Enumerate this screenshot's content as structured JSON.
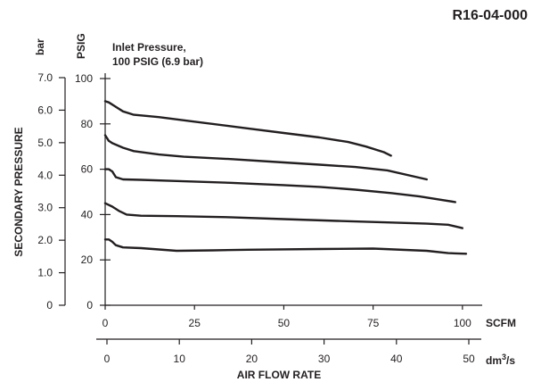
{
  "chart_data": {
    "type": "line",
    "code": "R16-04-000",
    "annotation_line1": "Inlet Pressure,",
    "annotation_line2": "100 PSIG (6.9 bar)",
    "ylabel": "SECONDARY PRESSURE",
    "xlabel": "AIR FLOW RATE",
    "x_unit_primary": "SCFM",
    "x_unit_secondary_base": "dm",
    "x_unit_secondary_sup": "3",
    "x_unit_secondary_tail": "/s",
    "y_unit_primary": "PSIG",
    "y_unit_secondary": "bar",
    "xlim": [
      0,
      118
    ],
    "ylim": [
      0,
      100
    ],
    "x_ticks": [
      0,
      25,
      50,
      75,
      100
    ],
    "x_tick_labels": [
      "0",
      "25",
      "50",
      "75",
      "100"
    ],
    "x2_ticks": [
      0,
      10,
      20,
      30,
      40,
      50
    ],
    "x2_tick_labels": [
      "0",
      "10",
      "20",
      "30",
      "40",
      "50"
    ],
    "y_ticks": [
      0,
      20,
      40,
      60,
      80,
      100
    ],
    "y_tick_labels": [
      "0",
      "20",
      "40",
      "60",
      "80",
      "100"
    ],
    "y2_ticks": [
      0,
      1,
      2,
      3,
      4,
      5,
      6,
      7
    ],
    "y2_tick_labels": [
      "0",
      "1.0",
      "2.0",
      "3.0",
      "4.0",
      "5.0",
      "6.0",
      "7.0"
    ],
    "grid": true,
    "series": [
      {
        "x": [
          0,
          1,
          2,
          3,
          5,
          8,
          15,
          25,
          40,
          50,
          60,
          68,
          73,
          78,
          80
        ],
        "y": [
          90,
          89.5,
          88.5,
          87.5,
          85.5,
          84,
          83,
          81,
          78,
          76,
          74,
          72,
          70,
          67.5,
          66
        ]
      },
      {
        "x": [
          0,
          1,
          2,
          5,
          8,
          15,
          22,
          35,
          50,
          60,
          70,
          79,
          90
        ],
        "y": [
          75,
          72.5,
          71.5,
          69.5,
          68,
          66.5,
          65.5,
          64.5,
          63,
          62,
          61,
          59.5,
          55.5
        ]
      },
      {
        "x": [
          0,
          1,
          2,
          3,
          5,
          10,
          20,
          35,
          50,
          60,
          70,
          80,
          88,
          98
        ],
        "y": [
          60,
          60,
          59,
          56.5,
          55.5,
          55.3,
          54.8,
          54,
          53,
          52.2,
          51,
          49.5,
          48,
          45.5
        ]
      },
      {
        "x": [
          0,
          2,
          4,
          6,
          10,
          20,
          35,
          50,
          65,
          80,
          90,
          96,
          100
        ],
        "y": [
          45,
          43.5,
          41.5,
          40,
          39.5,
          39.3,
          38.8,
          38,
          37.2,
          36.5,
          36,
          35.5,
          34
        ]
      },
      {
        "x": [
          0,
          1,
          2,
          3,
          5,
          10,
          20,
          30,
          40,
          60,
          75,
          90,
          96,
          101
        ],
        "y": [
          29,
          29,
          28,
          26.5,
          25.5,
          25.2,
          24,
          24.2,
          24.5,
          24.8,
          25,
          24,
          23,
          22.7
        ]
      }
    ]
  }
}
